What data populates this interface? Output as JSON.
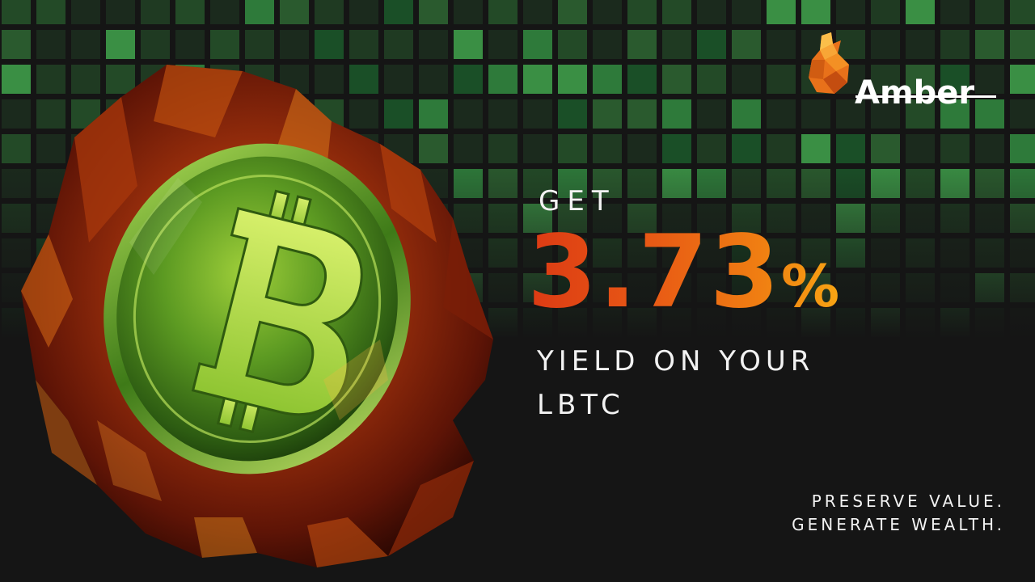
{
  "brand": {
    "name": "Amber",
    "accent_color": "#f07f12"
  },
  "headline": {
    "prefix": "GET",
    "rate": "3.73",
    "percent_sign": "%",
    "line1": "YIELD ON YOUR",
    "line2": "LBTC"
  },
  "tagline": {
    "line1": "PRESERVE VALUE.",
    "line2": "GENERATE WEALTH."
  },
  "hero": {
    "subject": "bitcoin-coin-in-amber-stone-icon"
  }
}
